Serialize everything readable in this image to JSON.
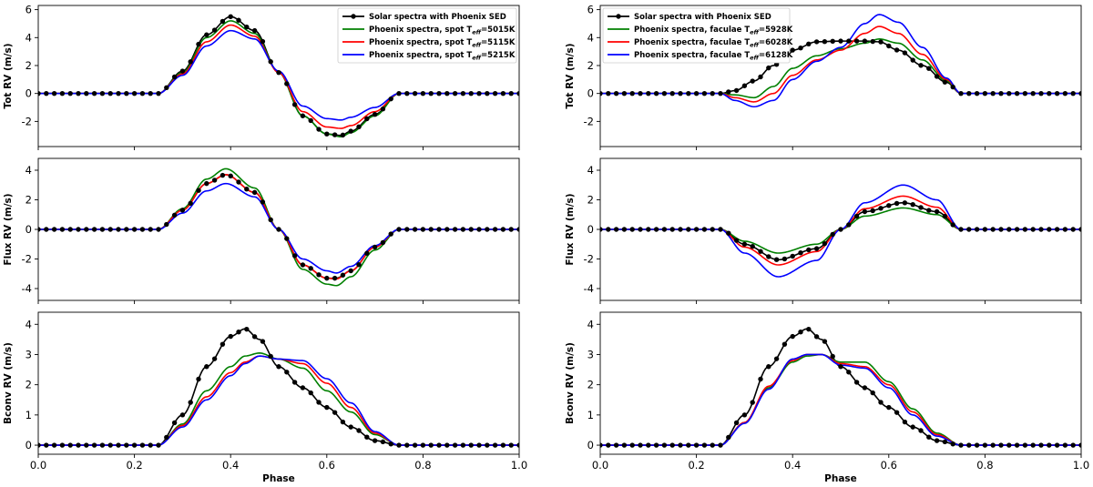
{
  "chart_data": [
    {
      "type": "line",
      "panel": "top-left",
      "xlabel": "",
      "ylabel": "Tot RV (m/s)",
      "xlim": [
        0,
        1
      ],
      "ylim": [
        -3.8,
        6.3
      ],
      "yticks": [
        -2,
        0,
        2,
        4,
        6
      ],
      "xticks": [],
      "xtick_labels": [],
      "legend": {
        "placement": "top-right",
        "entries": [
          {
            "series": 0,
            "text": "Solar spectra with Phoenix SED"
          },
          {
            "series": 1,
            "text": "Phoenix spectra, spot ",
            "sym": "T",
            "sub": "eff",
            "tail": "=5015K"
          },
          {
            "series": 2,
            "text": "Phoenix spectra, spot ",
            "sym": "T",
            "sub": "eff",
            "tail": "=5115K"
          },
          {
            "series": 3,
            "text": "Phoenix spectra, spot ",
            "sym": "T",
            "sub": "eff",
            "tail": "=5215K"
          }
        ]
      },
      "x": [
        0.0,
        0.25,
        0.3,
        0.35,
        0.4,
        0.45,
        0.5,
        0.55,
        0.6,
        0.63,
        0.65,
        0.7,
        0.75,
        0.8,
        1.0
      ],
      "series": [
        {
          "name": "Solar spectra with Phoenix SED",
          "color": "#000000",
          "markers": true,
          "values": [
            0,
            0,
            1.6,
            4.2,
            5.5,
            4.5,
            1.5,
            -1.6,
            -2.9,
            -3.0,
            -2.7,
            -1.5,
            0,
            0,
            0
          ]
        },
        {
          "name": "Phoenix spectra, spot Teff=5015K",
          "color": "#008000",
          "markers": false,
          "values": [
            0,
            0,
            1.5,
            4.0,
            5.2,
            4.3,
            1.5,
            -1.6,
            -2.9,
            -3.1,
            -2.8,
            -1.6,
            0,
            0,
            0
          ]
        },
        {
          "name": "Phoenix spectra, spot Teff=5115K",
          "color": "#ff0000",
          "markers": false,
          "values": [
            0,
            0,
            1.4,
            3.7,
            4.9,
            4.1,
            1.5,
            -1.3,
            -2.4,
            -2.5,
            -2.3,
            -1.3,
            0,
            0,
            0
          ]
        },
        {
          "name": "Phoenix spectra, spot Teff=5215K",
          "color": "#0000ff",
          "markers": false,
          "values": [
            0,
            0,
            1.3,
            3.4,
            4.5,
            3.9,
            1.6,
            -0.9,
            -1.8,
            -1.9,
            -1.7,
            -1.0,
            0,
            0,
            0
          ]
        }
      ]
    },
    {
      "type": "line",
      "panel": "top-right",
      "xlabel": "",
      "ylabel": "Tot RV (m/s)",
      "xlim": [
        0,
        1
      ],
      "ylim": [
        -3.8,
        6.3
      ],
      "yticks": [
        -2,
        0,
        2,
        4,
        6
      ],
      "xticks": [],
      "xtick_labels": [],
      "legend": {
        "placement": "top-left",
        "entries": [
          {
            "series": 0,
            "text": "Solar spectra with Phoenix SED"
          },
          {
            "series": 1,
            "text": "Phoenix spectra, faculae ",
            "sym": "T",
            "sub": "eff",
            "tail": "=5928K"
          },
          {
            "series": 2,
            "text": "Phoenix spectra, faculae ",
            "sym": "T",
            "sub": "eff",
            "tail": "=6028K"
          },
          {
            "series": 3,
            "text": "Phoenix spectra, faculae ",
            "sym": "T",
            "sub": "eff",
            "tail": "=6128K"
          }
        ]
      },
      "x": [
        0.0,
        0.25,
        0.28,
        0.32,
        0.36,
        0.4,
        0.45,
        0.5,
        0.55,
        0.58,
        0.62,
        0.67,
        0.72,
        0.75,
        0.8,
        1.0
      ],
      "series": [
        {
          "name": "Solar spectra with Phoenix SED",
          "color": "#000000",
          "markers": true,
          "values": [
            0,
            0,
            0.2,
            0.9,
            2.0,
            3.1,
            3.7,
            3.75,
            3.75,
            3.7,
            3.1,
            2.0,
            0.8,
            0,
            0,
            0
          ]
        },
        {
          "name": "Phoenix spectra, faculae Teff=5928K",
          "color": "#008000",
          "markers": false,
          "values": [
            0,
            0,
            -0.1,
            -0.3,
            0.5,
            1.8,
            2.7,
            3.2,
            3.6,
            3.9,
            3.6,
            2.4,
            0.9,
            0,
            0,
            0
          ]
        },
        {
          "name": "Phoenix spectra, faculae Teff=6028K",
          "color": "#ff0000",
          "markers": false,
          "values": [
            0,
            0,
            -0.3,
            -0.6,
            0.0,
            1.3,
            2.4,
            3.1,
            4.3,
            4.8,
            4.3,
            2.8,
            1.0,
            0,
            0,
            0
          ]
        },
        {
          "name": "Phoenix spectra, faculae Teff=6128K",
          "color": "#0000ff",
          "markers": false,
          "values": [
            0,
            0,
            -0.5,
            -0.95,
            -0.5,
            1.0,
            2.3,
            3.3,
            5.0,
            5.65,
            5.1,
            3.3,
            1.1,
            0,
            0,
            0
          ]
        }
      ]
    },
    {
      "type": "line",
      "panel": "middle-left",
      "xlabel": "",
      "ylabel": "Flux RV (m/s)",
      "xlim": [
        0,
        1
      ],
      "ylim": [
        -4.8,
        4.8
      ],
      "yticks": [
        -4,
        -2,
        0,
        2,
        4
      ],
      "xticks": [],
      "xtick_labels": [],
      "x": [
        0.0,
        0.25,
        0.3,
        0.35,
        0.39,
        0.45,
        0.5,
        0.55,
        0.6,
        0.62,
        0.65,
        0.7,
        0.75,
        0.8,
        1.0
      ],
      "series": [
        {
          "name": "Solar spectra with Phoenix SED",
          "color": "#000000",
          "markers": true,
          "values": [
            0,
            0,
            1.3,
            3.1,
            3.7,
            2.5,
            0,
            -2.4,
            -3.3,
            -3.3,
            -2.8,
            -1.2,
            0,
            0,
            0
          ]
        },
        {
          "name": "Phoenix spectra, spot Teff=5015K",
          "color": "#008000",
          "markers": false,
          "values": [
            0,
            0,
            1.4,
            3.4,
            4.1,
            2.8,
            0,
            -2.7,
            -3.7,
            -3.8,
            -3.2,
            -1.4,
            0,
            0,
            0
          ]
        },
        {
          "name": "Phoenix spectra, spot Teff=5115K",
          "color": "#ff0000",
          "markers": false,
          "values": [
            0,
            0,
            1.3,
            3.1,
            3.7,
            2.5,
            0,
            -2.4,
            -3.3,
            -3.35,
            -2.8,
            -1.2,
            0,
            0,
            0
          ]
        },
        {
          "name": "Phoenix spectra, spot Teff=5215K",
          "color": "#0000ff",
          "markers": false,
          "values": [
            0,
            0,
            1.1,
            2.6,
            3.1,
            2.2,
            0,
            -2.0,
            -2.8,
            -2.95,
            -2.5,
            -1.1,
            0,
            0,
            0
          ]
        }
      ]
    },
    {
      "type": "line",
      "panel": "middle-right",
      "xlabel": "",
      "ylabel": "Flux RV (m/s)",
      "xlim": [
        0,
        1
      ],
      "ylim": [
        -4.8,
        4.8
      ],
      "yticks": [
        -4,
        -2,
        0,
        2,
        4
      ],
      "xticks": [],
      "xtick_labels": [],
      "x": [
        0.0,
        0.25,
        0.3,
        0.37,
        0.45,
        0.5,
        0.55,
        0.63,
        0.7,
        0.75,
        0.8,
        1.0
      ],
      "series": [
        {
          "name": "Solar spectra with Phoenix SED",
          "color": "#000000",
          "markers": true,
          "values": [
            0,
            0,
            -1.0,
            -2.05,
            -1.3,
            0,
            1.2,
            1.8,
            1.2,
            0,
            0,
            0
          ]
        },
        {
          "name": "Phoenix spectra, faculae Teff=5928K",
          "color": "#008000",
          "markers": false,
          "values": [
            0,
            0,
            -0.8,
            -1.6,
            -1.0,
            0,
            0.9,
            1.45,
            1.0,
            0,
            0,
            0
          ]
        },
        {
          "name": "Phoenix spectra, faculae Teff=6028K",
          "color": "#ff0000",
          "markers": false,
          "values": [
            0,
            0,
            -1.2,
            -2.4,
            -1.5,
            0,
            1.4,
            2.25,
            1.5,
            0,
            0,
            0
          ]
        },
        {
          "name": "Phoenix spectra, faculae Teff=6128K",
          "color": "#0000ff",
          "markers": false,
          "values": [
            0,
            0,
            -1.6,
            -3.2,
            -2.1,
            0,
            1.8,
            3.0,
            2.0,
            0,
            0,
            0
          ]
        }
      ]
    },
    {
      "type": "line",
      "panel": "bottom-left",
      "xlabel": "Phase",
      "ylabel": "Bconv RV (m/s)",
      "xlim": [
        0,
        1
      ],
      "ylim": [
        -0.3,
        4.4
      ],
      "yticks": [
        0,
        1,
        2,
        3,
        4
      ],
      "xticks": [
        0.0,
        0.2,
        0.4,
        0.6,
        0.8,
        1.0
      ],
      "xtick_labels": [
        "0.0",
        "0.2",
        "0.4",
        "0.6",
        "0.8",
        "1.0"
      ],
      "x": [
        0.0,
        0.25,
        0.3,
        0.35,
        0.4,
        0.43,
        0.46,
        0.5,
        0.55,
        0.6,
        0.65,
        0.7,
        0.75,
        0.8,
        1.0
      ],
      "series": [
        {
          "name": "Solar spectra with Phoenix SED",
          "color": "#000000",
          "markers": true,
          "values": [
            0,
            0,
            1.0,
            2.6,
            3.6,
            3.85,
            3.5,
            2.6,
            1.9,
            1.25,
            0.6,
            0.15,
            0,
            0,
            0
          ]
        },
        {
          "name": "Phoenix spectra, spot Teff=5015K",
          "color": "#008000",
          "markers": false,
          "values": [
            0,
            0,
            0.7,
            1.8,
            2.6,
            2.95,
            3.05,
            2.85,
            2.55,
            1.8,
            1.1,
            0.35,
            0,
            0,
            0
          ]
        },
        {
          "name": "Phoenix spectra, spot Teff=5115K",
          "color": "#ff0000",
          "markers": false,
          "values": [
            0,
            0,
            0.65,
            1.6,
            2.4,
            2.75,
            2.95,
            2.85,
            2.7,
            2.05,
            1.25,
            0.4,
            0,
            0,
            0
          ]
        },
        {
          "name": "Phoenix spectra, spot Teff=5215K",
          "color": "#0000ff",
          "markers": false,
          "values": [
            0,
            0,
            0.6,
            1.5,
            2.3,
            2.7,
            2.95,
            2.85,
            2.8,
            2.2,
            1.4,
            0.45,
            0,
            0,
            0
          ]
        }
      ]
    },
    {
      "type": "line",
      "panel": "bottom-right",
      "xlabel": "Phase",
      "ylabel": "Bconv RV (m/s)",
      "xlim": [
        0,
        1
      ],
      "ylim": [
        -0.3,
        4.4
      ],
      "yticks": [
        0,
        1,
        2,
        3,
        4
      ],
      "xticks": [
        0.0,
        0.2,
        0.4,
        0.6,
        0.8,
        1.0
      ],
      "xtick_labels": [
        "0.0",
        "0.2",
        "0.4",
        "0.6",
        "0.8",
        "1.0"
      ],
      "x": [
        0.0,
        0.25,
        0.3,
        0.35,
        0.4,
        0.43,
        0.46,
        0.5,
        0.55,
        0.6,
        0.65,
        0.7,
        0.75,
        0.8,
        1.0
      ],
      "series": [
        {
          "name": "Solar spectra with Phoenix SED",
          "color": "#000000",
          "markers": true,
          "values": [
            0,
            0,
            1.0,
            2.6,
            3.6,
            3.85,
            3.5,
            2.6,
            1.9,
            1.25,
            0.6,
            0.15,
            0,
            0,
            0
          ]
        },
        {
          "name": "Phoenix spectra, faculae Teff=5928K",
          "color": "#008000",
          "markers": false,
          "values": [
            0,
            0,
            0.75,
            1.9,
            2.75,
            2.95,
            3.0,
            2.75,
            2.75,
            2.1,
            1.2,
            0.4,
            0,
            0,
            0
          ]
        },
        {
          "name": "Phoenix spectra, faculae Teff=6028K",
          "color": "#ff0000",
          "markers": false,
          "values": [
            0,
            0,
            0.75,
            1.95,
            2.8,
            3.0,
            3.0,
            2.7,
            2.6,
            2.0,
            1.1,
            0.35,
            0,
            0,
            0
          ]
        },
        {
          "name": "Phoenix spectra, faculae Teff=6128K",
          "color": "#0000ff",
          "markers": false,
          "values": [
            0,
            0,
            0.72,
            1.85,
            2.85,
            3.0,
            3.0,
            2.65,
            2.55,
            1.9,
            1.0,
            0.3,
            0,
            0,
            0
          ]
        }
      ]
    }
  ]
}
